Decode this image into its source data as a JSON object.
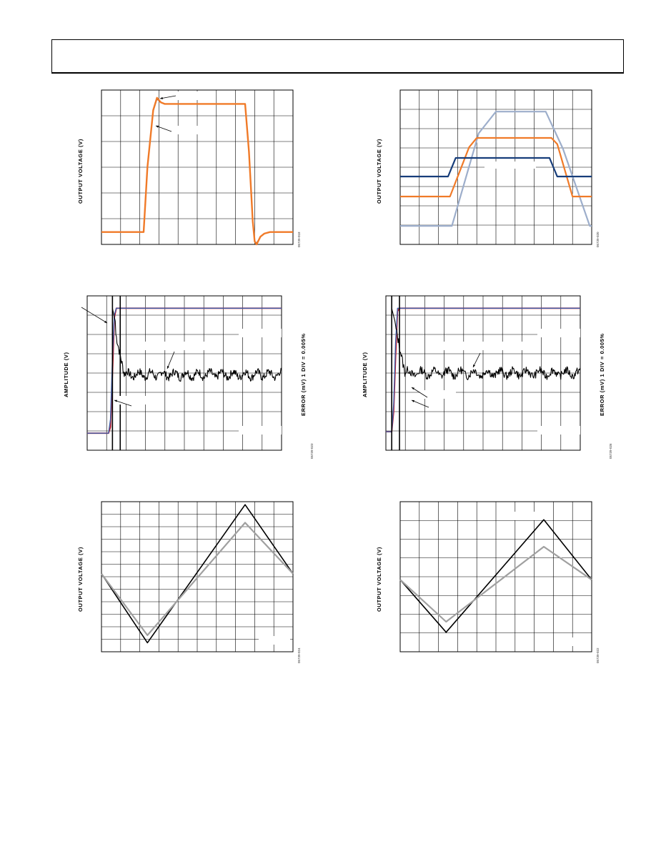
{
  "page": {
    "header_text": ""
  },
  "panels": [
    {
      "id": "p1",
      "ylabel": "OUTPUT VOLTAGE (V)",
      "rlabel": "",
      "code": "05739-018",
      "colors": {
        "orange": "#f07a28",
        "dark": "#1f3a72"
      }
    },
    {
      "id": "p2",
      "ylabel": "OUTPUT VOLTAGE (V)",
      "rlabel": "",
      "code": "05739-020",
      "colors": {
        "dark": "#173d7a",
        "orange": "#f07a28",
        "light": "#9daecb"
      }
    },
    {
      "id": "p3",
      "ylabel": "AMPLITUDE (V)",
      "rlabel": "ERROR (mV) 1 DIV = 0.005%",
      "code": "05739-023",
      "colors": {
        "blue": "#3f5fa8",
        "red": "#c0192a",
        "black": "#000000"
      }
    },
    {
      "id": "p4",
      "ylabel": "AMPLITUDE (V)",
      "rlabel": "ERROR (mV) 1 DIV = 0.005%",
      "code": "05739-026",
      "colors": {
        "blue": "#3f5fa8",
        "red": "#c0192a",
        "black": "#000000"
      }
    },
    {
      "id": "p5",
      "ylabel": "OUTPUT VOLTAGE (V)",
      "rlabel": "",
      "code": "05739-024",
      "colors": {
        "black": "#000000",
        "gray": "#a0a0a0"
      }
    },
    {
      "id": "p6",
      "ylabel": "OUTPUT VOLTAGE (V)",
      "rlabel": "",
      "code": "05739-022",
      "colors": {
        "black": "#000000",
        "gray": "#a0a0a0"
      }
    }
  ],
  "chart_data": [
    {
      "type": "line",
      "title": "",
      "ylabel": "OUTPUT VOLTAGE (V)",
      "grid": true,
      "x": [
        0,
        0.22,
        0.24,
        0.27,
        0.29,
        0.31,
        0.33,
        0.35,
        0.37,
        0.75,
        0.77,
        0.79,
        0.8,
        0.81,
        0.83,
        0.85,
        0.88,
        1
      ],
      "series": [
        {
          "values": [
            0.08,
            0.08,
            0.5,
            0.87,
            0.95,
            0.92,
            0.91,
            0.91,
            0.91,
            0.91,
            0.6,
            0.15,
            0.02,
            0,
            0.05,
            0.07,
            0.08,
            0.08
          ]
        },
        {
          "values": [
            0.08,
            0.08,
            0.5,
            0.86,
            0.94,
            0.92,
            0.91,
            0.91,
            0.91,
            0.91,
            0.6,
            0.15,
            0.02,
            0.01,
            0.05,
            0.07,
            0.08,
            0.08
          ]
        }
      ]
    },
    {
      "type": "line",
      "title": "",
      "ylabel": "OUTPUT VOLTAGE (V)",
      "grid": true,
      "x": [
        0,
        0.25,
        0.29,
        0.31,
        0.76,
        0.78,
        0.82,
        1
      ],
      "series": [
        {
          "values": [
            0.44,
            0.44,
            0.56,
            0.56,
            0.56,
            0.56,
            0.44,
            0.44
          ]
        }
      ],
      "series_orange": {
        "x": [
          0,
          0.26,
          0.36,
          0.4,
          0.79,
          0.82,
          0.9,
          1
        ],
        "values": [
          0.31,
          0.31,
          0.63,
          0.69,
          0.69,
          0.65,
          0.31,
          0.31
        ]
      },
      "series_light": {
        "x": [
          0,
          0.27,
          0.41,
          0.5,
          0.76,
          0.85,
          0.99,
          1
        ],
        "values": [
          0.12,
          0.12,
          0.72,
          0.86,
          0.86,
          0.62,
          0.12,
          0.12
        ]
      }
    },
    {
      "type": "line",
      "title": "",
      "ylabel": "AMPLITUDE (V)",
      "grid": true,
      "x": [
        0,
        0.11,
        0.12,
        0.13,
        0.14,
        0.15,
        0.16,
        0.17,
        0.18,
        0.19,
        0.2,
        0.21,
        0.22,
        0.23,
        1
      ],
      "series": [
        {
          "values": [
            0.11,
            0.11,
            0.2,
            0.6,
            0.88,
            0.92,
            0.92,
            0.92,
            0.92,
            0.92,
            0.92,
            0.92,
            0.92,
            0.92,
            0.92
          ]
        },
        {
          "values": [
            0.11,
            0.11,
            0.15,
            0.5,
            0.86,
            0.92,
            0.92,
            0.92,
            0.92,
            0.92,
            0.92,
            0.92,
            0.92,
            0.92,
            0.92
          ]
        }
      ],
      "error_trace_level": 0.49
    },
    {
      "type": "line",
      "title": "",
      "ylabel": "AMPLITUDE (V)",
      "grid": true,
      "x": [
        0,
        0.03,
        0.04,
        0.05,
        0.06,
        0.07,
        0.08,
        1
      ],
      "series": [
        {
          "values": [
            0.12,
            0.12,
            0.3,
            0.7,
            0.92,
            0.92,
            0.92,
            0.92
          ]
        },
        {
          "values": [
            0.12,
            0.12,
            0.25,
            0.6,
            0.9,
            0.92,
            0.92,
            0.92
          ]
        }
      ],
      "error_trace_level": 0.5
    },
    {
      "type": "line",
      "title": "",
      "ylabel": "OUTPUT VOLTAGE (V)",
      "grid": true,
      "x": [
        0,
        0.24,
        0.75,
        1
      ],
      "series": [
        {
          "values": [
            0.52,
            0.06,
            0.98,
            0.52
          ]
        }
      ],
      "clip_range": [
        0.11,
        0.86
      ]
    },
    {
      "type": "line",
      "title": "",
      "ylabel": "OUTPUT VOLTAGE (V)",
      "grid": true,
      "x": [
        0,
        0.24,
        0.75,
        1
      ],
      "series": [
        {
          "values": [
            0.48,
            0.13,
            0.88,
            0.48
          ]
        }
      ],
      "clip_range": [
        0.2,
        0.7
      ]
    }
  ]
}
